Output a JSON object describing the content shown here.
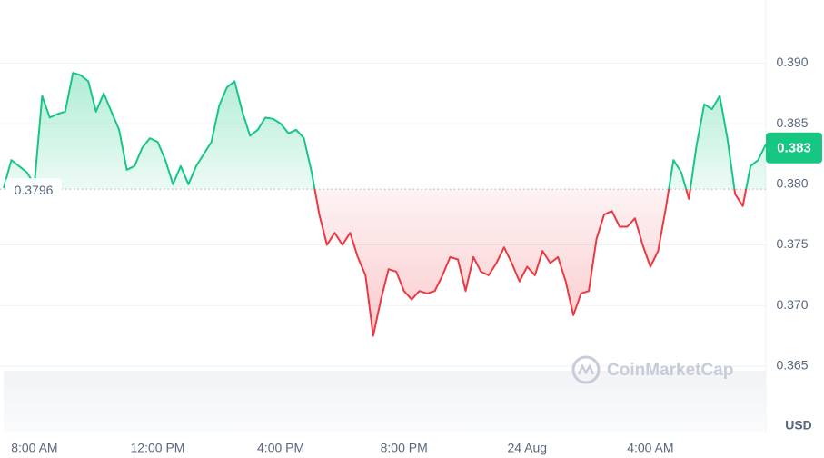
{
  "chart_data": {
    "type": "line",
    "unit": "USD",
    "watermark": "CoinMarketCap",
    "baseline": 0.3796,
    "current_price": 0.383,
    "up_color": "#16c784",
    "down_color": "#ea3943",
    "grid": true,
    "ylim": [
      0.3596,
      0.3952
    ],
    "yticks": [
      0.365,
      {
        "value": 0.37,
        "label": "0.370"
      },
      0.375,
      {
        "value": 0.38,
        "label": "0.380"
      },
      0.385,
      {
        "value": 0.39,
        "label": "0.390"
      }
    ],
    "categories": [
      null,
      null,
      null,
      null,
      "8:00 AM",
      null,
      null,
      null,
      null,
      null,
      null,
      null,
      null,
      null,
      null,
      null,
      null,
      null,
      null,
      null,
      "12:00 PM",
      null,
      null,
      null,
      null,
      null,
      null,
      null,
      null,
      null,
      null,
      null,
      null,
      null,
      null,
      null,
      "4:00 PM",
      null,
      null,
      null,
      null,
      null,
      null,
      null,
      null,
      null,
      null,
      null,
      null,
      null,
      null,
      null,
      "8:00 PM",
      null,
      null,
      null,
      null,
      null,
      null,
      null,
      null,
      null,
      null,
      null,
      null,
      null,
      null,
      null,
      "24 Aug",
      null,
      null,
      null,
      null,
      null,
      null,
      null,
      null,
      null,
      null,
      null,
      null,
      null,
      null,
      null,
      "4:00 AM",
      null,
      null,
      null,
      null,
      null,
      null,
      null,
      null,
      null,
      null,
      null,
      null,
      null,
      null,
      null
    ],
    "values": [
      0.3797,
      0.382,
      0.3815,
      0.381,
      0.38,
      0.3873,
      0.3855,
      0.3858,
      0.386,
      0.3892,
      0.389,
      0.3885,
      0.386,
      0.3875,
      0.386,
      0.3845,
      0.3812,
      0.3815,
      0.383,
      0.3838,
      0.3835,
      0.382,
      0.38,
      0.3815,
      0.38,
      0.3815,
      0.3825,
      0.3835,
      0.3865,
      0.388,
      0.3885,
      0.386,
      0.384,
      0.3845,
      0.3855,
      0.3854,
      0.385,
      0.3842,
      0.3845,
      0.3838,
      0.381,
      0.3775,
      0.375,
      0.376,
      0.375,
      0.376,
      0.374,
      0.3725,
      0.3675,
      0.3705,
      0.373,
      0.3728,
      0.3712,
      0.3705,
      0.3712,
      0.371,
      0.3712,
      0.3725,
      0.374,
      0.3738,
      0.3712,
      0.374,
      0.3728,
      0.3725,
      0.3735,
      0.3748,
      0.3735,
      0.372,
      0.3732,
      0.3725,
      0.3745,
      0.3735,
      0.374,
      0.372,
      0.3692,
      0.371,
      0.3712,
      0.3755,
      0.3775,
      0.3778,
      0.3765,
      0.3765,
      0.3772,
      0.375,
      0.3732,
      0.3745,
      0.378,
      0.382,
      0.381,
      0.3788,
      0.3832,
      0.3866,
      0.3862,
      0.3873,
      0.3838,
      0.3792,
      0.3782,
      0.3815,
      0.382,
      0.3833
    ]
  }
}
